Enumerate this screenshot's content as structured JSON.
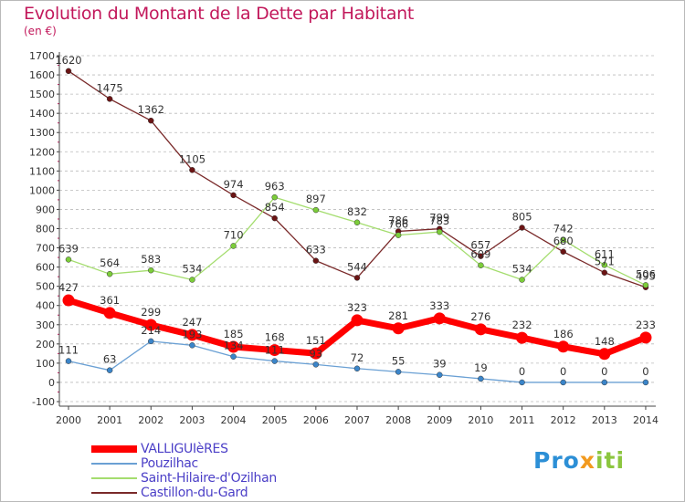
{
  "header": {
    "title": "Evolution du Montant de la Dette par Habitant",
    "unit": "(en €)"
  },
  "logo": {
    "text": "Proxiti",
    "colors": [
      "#2c8fd6",
      "#f29a1e",
      "#8cc63f"
    ]
  },
  "colors": {
    "title": "#c2185b",
    "legend_text": "#4b3fc7",
    "grid": "#bbbbbb"
  },
  "chart_data": {
    "type": "line",
    "title": "Evolution du Montant de la Dette par Habitant",
    "subtitle": "(en €)",
    "x": [
      2000,
      2001,
      2002,
      2003,
      2004,
      2005,
      2006,
      2007,
      2008,
      2009,
      2010,
      2011,
      2012,
      2013,
      2014
    ],
    "ylim": [
      -100,
      1700
    ],
    "yticks": [
      -100,
      0,
      100,
      200,
      300,
      400,
      500,
      600,
      700,
      800,
      900,
      1000,
      1100,
      1200,
      1300,
      1400,
      1500,
      1600,
      1700
    ],
    "grid": "horizontal dashed",
    "legend_position": "bottom-left",
    "series": [
      {
        "name": "VALLIGUIèRES",
        "color": "#ff0000",
        "point_color": "#ff0000",
        "width": 7,
        "values": [
          427,
          361,
          299,
          247,
          185,
          168,
          151,
          323,
          281,
          333,
          276,
          232,
          186,
          148,
          233
        ]
      },
      {
        "name": "Pouzilhac",
        "color": "#6aa0d4",
        "point_color": "#3b85c9",
        "width": 1.3,
        "values": [
          111,
          63,
          214,
          193,
          134,
          111,
          93,
          72,
          55,
          39,
          19,
          0,
          0,
          0,
          0
        ]
      },
      {
        "name": "Saint-Hilaire-d'Ozilhan",
        "color": "#a4dd6e",
        "point_color": "#7ccd3a",
        "width": 1.3,
        "values": [
          639,
          564,
          583,
          534,
          710,
          963,
          897,
          832,
          766,
          783,
          609,
          534,
          742,
          611,
          506
        ]
      },
      {
        "name": "Castillon-du-Gard",
        "color": "#7a2a2a",
        "point_color": "#6b1414",
        "width": 1.3,
        "values": [
          1620,
          1475,
          1362,
          1105,
          974,
          854,
          633,
          544,
          786,
          799,
          657,
          805,
          680,
          571,
          495
        ]
      }
    ]
  }
}
